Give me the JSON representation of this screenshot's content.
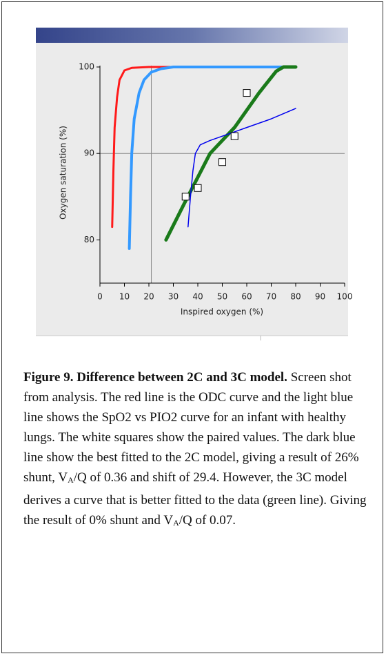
{
  "chart_data": {
    "type": "line",
    "x_label": "Inspired oxygen (%)",
    "y_label": "Oxygen saturation (%)",
    "xlim": [
      0,
      100
    ],
    "ylim": [
      75,
      100
    ],
    "xticks": [
      0,
      10,
      20,
      30,
      40,
      50,
      60,
      70,
      80,
      90,
      100
    ],
    "yticks": [
      80,
      90,
      100
    ],
    "reference_lines": {
      "x": 21,
      "y": 90,
      "color": "#888888"
    },
    "series": [
      {
        "color": "#ff1a1a",
        "width": 3,
        "x": [
          5,
          5.5,
          6,
          7,
          8,
          10,
          13,
          20,
          80
        ],
        "values": [
          81.5,
          88,
          93,
          96.5,
          98.5,
          99.6,
          99.9,
          100,
          100
        ]
      },
      {
        "color": "#3399ff",
        "width": 4,
        "x": [
          12,
          12.5,
          13,
          14,
          16,
          18,
          21,
          25,
          30,
          80
        ],
        "values": [
          79,
          85,
          90,
          94,
          97,
          98.5,
          99.4,
          99.8,
          100,
          100
        ]
      },
      {
        "color": "#1a7a1a",
        "width": 5,
        "x": [
          27,
          35,
          45,
          55,
          65,
          72,
          75,
          80
        ],
        "values": [
          80,
          84.5,
          90,
          93,
          97,
          99.5,
          100,
          100
        ]
      },
      {
        "color": "#0000ee",
        "width": 1.5,
        "x": [
          36,
          37,
          38,
          39,
          41,
          45,
          50,
          55,
          60,
          70,
          80
        ],
        "values": [
          81.5,
          85,
          88,
          90,
          91,
          91.5,
          92,
          92.5,
          93,
          94,
          95.2
        ]
      },
      {
        "color": "#ffffff",
        "marker": "square",
        "x": [
          35,
          40,
          50,
          55,
          60
        ],
        "values": [
          85,
          86,
          89,
          92,
          97
        ]
      }
    ]
  },
  "caption": {
    "title": "Figure 9. Difference between 2C and 3C model.",
    "segments": [
      {
        "text": "Screen shot from analysis. The red line is the ODC curve and the light blue line shows the SpO2 vs PIO2 curve for an infant with healthy lungs. The white squares show the paired values. The dark blue line show the best fitted to the 2C model, giving a result of 26% shunt, V"
      },
      {
        "sub": "A"
      },
      {
        "text": "/Q of 0.36 and shift of 29.4. However, the 3C model derives a curve that is better fitted to the data (green line). Giving the result of 0% shunt and V"
      },
      {
        "sub": "A"
      },
      {
        "text": "/Q of 0.07."
      }
    ]
  }
}
